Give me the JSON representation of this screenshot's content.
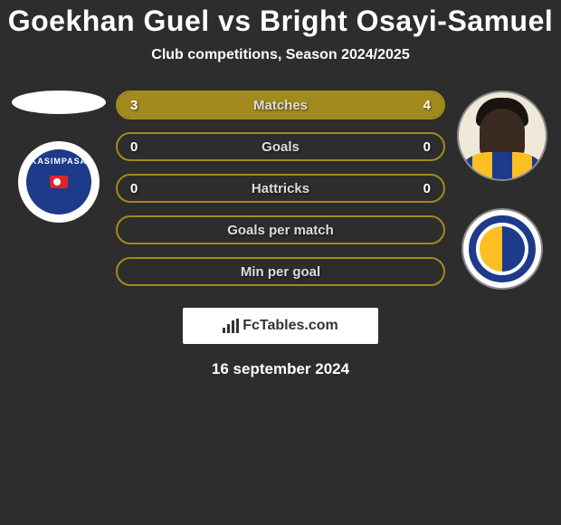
{
  "title": "Goekhan Guel vs Bright Osayi-Samuel",
  "subtitle": "Club competitions, Season 2024/2025",
  "brand": "FcTables.com",
  "date": "16 september 2024",
  "bar_style": {
    "border_color": "#a38a1e",
    "fill_color": "#a38a1e",
    "empty_color": "transparent",
    "height": 32,
    "radius": 16
  },
  "left": {
    "team_logo": "kasimpasa",
    "team_label": "KASIMPASA"
  },
  "right": {
    "team_logo": "fenerbahce"
  },
  "bars": [
    {
      "label": "Matches",
      "left": "3",
      "right": "4",
      "left_pct": 42.9,
      "right_pct": 57.1
    },
    {
      "label": "Goals",
      "left": "0",
      "right": "0",
      "left_pct": 0,
      "right_pct": 0
    },
    {
      "label": "Hattricks",
      "left": "0",
      "right": "0",
      "left_pct": 0,
      "right_pct": 0
    },
    {
      "label": "Goals per match",
      "left": "",
      "right": "",
      "left_pct": 0,
      "right_pct": 0
    },
    {
      "label": "Min per goal",
      "left": "",
      "right": "",
      "left_pct": 0,
      "right_pct": 0
    }
  ]
}
